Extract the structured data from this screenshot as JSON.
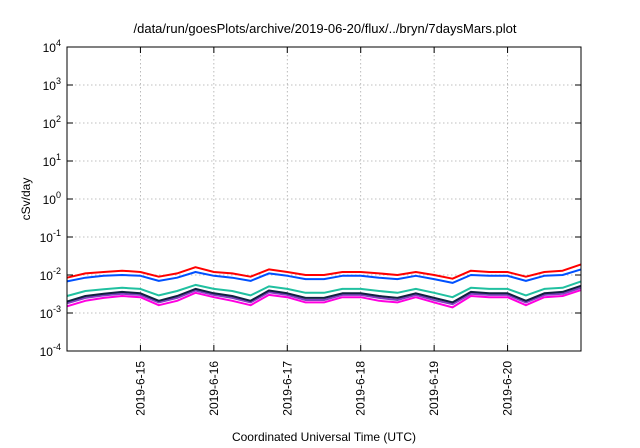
{
  "chart_data": {
    "type": "line",
    "title": "/data/run/goesPlots/archive/2019-06-20/flux/../bryn/7daysMars.plot",
    "xlabel": "Coordinated Universal Time (UTC)",
    "ylabel": "cSv/day",
    "yscale": "log",
    "ylim": [
      0.0001,
      10000
    ],
    "y_ticks": [
      {
        "base": "10",
        "exp": "-4"
      },
      {
        "base": "10",
        "exp": "-3"
      },
      {
        "base": "10",
        "exp": "-2"
      },
      {
        "base": "10",
        "exp": "-1"
      },
      {
        "base": "10",
        "exp": "0"
      },
      {
        "base": "10",
        "exp": "1"
      },
      {
        "base": "10",
        "exp": "2"
      },
      {
        "base": "10",
        "exp": "3"
      },
      {
        "base": "10",
        "exp": "4"
      }
    ],
    "xlim": [
      "2019-06-14T00:00",
      "2019-06-21T00:00"
    ],
    "x_ticks": [
      "2019-6-15",
      "2019-6-16",
      "2019-6-17",
      "2019-6-18",
      "2019-6-19",
      "2019-6-20"
    ],
    "grid": true,
    "x": [
      "2019-06-14T00:00",
      "2019-06-14T06:00",
      "2019-06-14T12:00",
      "2019-06-14T18:00",
      "2019-06-15T00:00",
      "2019-06-15T06:00",
      "2019-06-15T12:00",
      "2019-06-15T18:00",
      "2019-06-16T00:00",
      "2019-06-16T06:00",
      "2019-06-16T12:00",
      "2019-06-16T18:00",
      "2019-06-17T00:00",
      "2019-06-17T06:00",
      "2019-06-17T12:00",
      "2019-06-17T18:00",
      "2019-06-18T00:00",
      "2019-06-18T06:00",
      "2019-06-18T12:00",
      "2019-06-18T18:00",
      "2019-06-19T00:00",
      "2019-06-19T06:00",
      "2019-06-19T12:00",
      "2019-06-19T18:00",
      "2019-06-20T00:00",
      "2019-06-20T06:00",
      "2019-06-20T12:00",
      "2019-06-20T18:00",
      "2019-06-21T00:00"
    ],
    "series": [
      {
        "color": "#ff0000",
        "values": [
          0.0085,
          0.011,
          0.012,
          0.013,
          0.012,
          0.009,
          0.011,
          0.016,
          0.012,
          0.011,
          0.009,
          0.014,
          0.012,
          0.01,
          0.01,
          0.012,
          0.012,
          0.011,
          0.01,
          0.012,
          0.01,
          0.008,
          0.013,
          0.012,
          0.012,
          0.009,
          0.012,
          0.013,
          0.019
        ]
      },
      {
        "color": "#0050ff",
        "values": [
          0.0068,
          0.0085,
          0.0095,
          0.01,
          0.0095,
          0.007,
          0.0085,
          0.012,
          0.0095,
          0.0085,
          0.007,
          0.011,
          0.0095,
          0.0078,
          0.0078,
          0.0095,
          0.0095,
          0.0085,
          0.0078,
          0.0095,
          0.0078,
          0.0062,
          0.01,
          0.0095,
          0.0095,
          0.007,
          0.0095,
          0.01,
          0.014
        ]
      },
      {
        "color": "#20c0a0",
        "values": [
          0.0028,
          0.0038,
          0.0042,
          0.0046,
          0.0043,
          0.0029,
          0.0038,
          0.0055,
          0.0043,
          0.0038,
          0.0029,
          0.005,
          0.0043,
          0.0034,
          0.0034,
          0.0043,
          0.0043,
          0.0038,
          0.0034,
          0.0043,
          0.0034,
          0.0026,
          0.0046,
          0.0043,
          0.0043,
          0.0029,
          0.0043,
          0.0046,
          0.0068
        ]
      },
      {
        "color": "#102040",
        "values": [
          0.002,
          0.0028,
          0.0032,
          0.0036,
          0.0033,
          0.0021,
          0.0028,
          0.0043,
          0.0033,
          0.0028,
          0.0021,
          0.0039,
          0.0033,
          0.0025,
          0.0025,
          0.0033,
          0.0033,
          0.0028,
          0.0025,
          0.0033,
          0.0025,
          0.0019,
          0.0036,
          0.0033,
          0.0033,
          0.0021,
          0.0033,
          0.0036,
          0.0052
        ]
      },
      {
        "color": "#8040c0",
        "values": [
          0.0018,
          0.0025,
          0.0029,
          0.0032,
          0.003,
          0.0019,
          0.0025,
          0.0039,
          0.003,
          0.0025,
          0.0019,
          0.0035,
          0.003,
          0.0022,
          0.0022,
          0.003,
          0.003,
          0.0025,
          0.0022,
          0.003,
          0.0022,
          0.0017,
          0.0032,
          0.003,
          0.003,
          0.0019,
          0.003,
          0.0032,
          0.0046
        ]
      },
      {
        "color": "#ff00e0",
        "values": [
          0.0015,
          0.0021,
          0.0025,
          0.0028,
          0.0026,
          0.0016,
          0.0021,
          0.0034,
          0.0026,
          0.0021,
          0.0016,
          0.003,
          0.0026,
          0.0019,
          0.0019,
          0.0026,
          0.0026,
          0.0021,
          0.0019,
          0.0026,
          0.0019,
          0.0014,
          0.0028,
          0.0026,
          0.0026,
          0.0016,
          0.0026,
          0.0028,
          0.004
        ]
      }
    ]
  }
}
